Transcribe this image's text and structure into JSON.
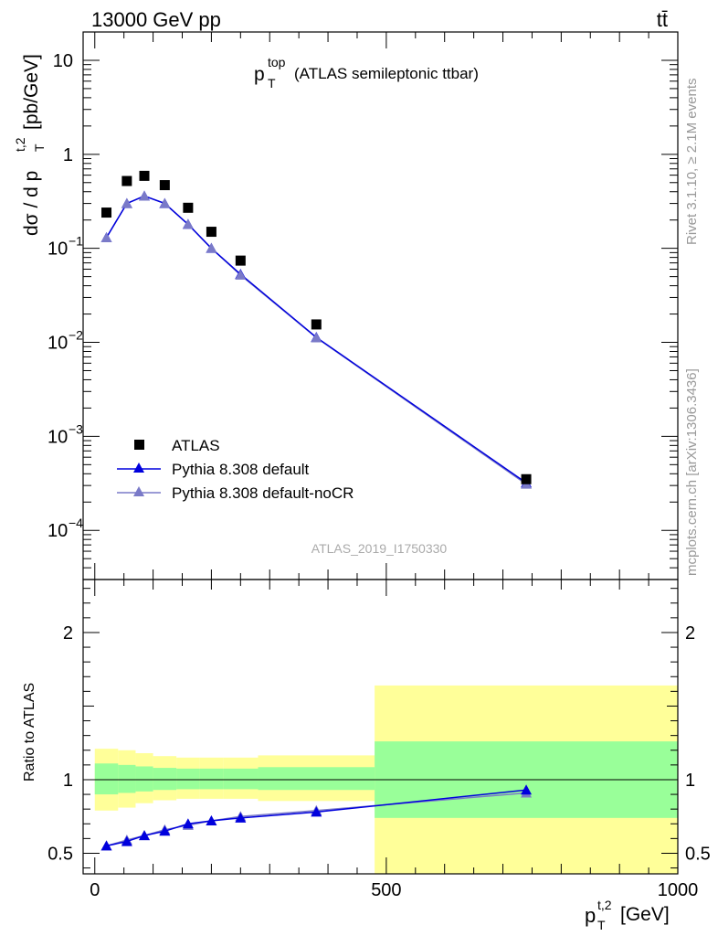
{
  "header": {
    "left": "13000 GeV pp",
    "right": "tt̄"
  },
  "side_labels": {
    "rivet": "Rivet 3.1.10, ≥ 2.1M events",
    "mcplots": "mcplots.cern.ch [arXiv:1306.3436]"
  },
  "chart_data": [
    {
      "panel": "main",
      "type": "scatter",
      "title_main": "p",
      "title_sup": "top",
      "title_sub": "T",
      "title_rest": "(ATLAS semileptonic ttbar)",
      "ylabel_prefix": "dσ / d p",
      "ylabel_sup": "t,2",
      "ylabel_sub": "T",
      "ylabel_suffix": "[pb/GeV]",
      "watermark": "ATLAS_2019_I1750330",
      "ylog": true,
      "ylim": [
        3e-05,
        20
      ],
      "xlim": [
        -20,
        1000
      ],
      "yticks": [
        {
          "value": 10,
          "base": "10",
          "exp": ""
        },
        {
          "value": 1,
          "base": "1",
          "exp": ""
        },
        {
          "value": 0.1,
          "base": "10",
          "exp": "−1"
        },
        {
          "value": 0.01,
          "base": "10",
          "exp": "−2"
        },
        {
          "value": 0.001,
          "base": "10",
          "exp": "−3"
        },
        {
          "value": 0.0001,
          "base": "10",
          "exp": "−4"
        }
      ],
      "x": [
        20,
        55,
        85,
        120,
        160,
        200,
        250,
        380,
        740
      ],
      "series": [
        {
          "name": "ATLAS",
          "color": "#000000",
          "marker": "square",
          "values": [
            0.24,
            0.52,
            0.59,
            0.47,
            0.27,
            0.15,
            0.074,
            0.0155,
            0.00035
          ]
        },
        {
          "name": "Pythia 8.308 default",
          "color": "#0000dd",
          "marker": "triangle",
          "values": [
            0.13,
            0.3,
            0.36,
            0.3,
            0.18,
            0.1,
            0.053,
            0.0113,
            0.00032
          ]
        },
        {
          "name": "Pythia 8.308 default-noCR",
          "color": "#7a7ac8",
          "marker": "triangle",
          "values": [
            0.13,
            0.3,
            0.36,
            0.3,
            0.18,
            0.1,
            0.052,
            0.0112,
            0.00031
          ]
        }
      ]
    },
    {
      "panel": "ratio",
      "type": "line",
      "ylabel": "Ratio to ATLAS",
      "xlabel_main": "p",
      "xlabel_sup": "t,2",
      "xlabel_sub": "T",
      "xlabel_suffix": "[GeV]",
      "xlim": [
        -20,
        1000
      ],
      "ylim": [
        0.36,
        2.36
      ],
      "xticks": [
        "0",
        "500",
        "1000"
      ],
      "yticks": [
        "0.5",
        "1",
        "2"
      ],
      "bins": [
        {
          "lo": 0,
          "hi": 40,
          "g_lo": 0.9,
          "g_hi": 1.11,
          "y_lo": 0.79,
          "y_hi": 1.21
        },
        {
          "lo": 40,
          "hi": 70,
          "g_lo": 0.91,
          "g_hi": 1.1,
          "y_lo": 0.81,
          "y_hi": 1.2
        },
        {
          "lo": 70,
          "hi": 100,
          "g_lo": 0.92,
          "g_hi": 1.09,
          "y_lo": 0.84,
          "y_hi": 1.18
        },
        {
          "lo": 100,
          "hi": 140,
          "g_lo": 0.93,
          "g_hi": 1.08,
          "y_lo": 0.86,
          "y_hi": 1.16
        },
        {
          "lo": 140,
          "hi": 180,
          "g_lo": 0.935,
          "g_hi": 1.075,
          "y_lo": 0.87,
          "y_hi": 1.15
        },
        {
          "lo": 180,
          "hi": 220,
          "g_lo": 0.935,
          "g_hi": 1.075,
          "y_lo": 0.87,
          "y_hi": 1.15
        },
        {
          "lo": 220,
          "hi": 280,
          "g_lo": 0.935,
          "g_hi": 1.075,
          "y_lo": 0.87,
          "y_hi": 1.15
        },
        {
          "lo": 280,
          "hi": 480,
          "g_lo": 0.93,
          "g_hi": 1.085,
          "y_lo": 0.855,
          "y_hi": 1.165
        },
        {
          "lo": 480,
          "hi": 1000,
          "g_lo": 0.74,
          "g_hi": 1.26,
          "y_lo": 0.36,
          "y_hi": 1.64
        }
      ],
      "x": [
        20,
        55,
        85,
        120,
        160,
        200,
        250,
        380,
        740
      ],
      "series": [
        {
          "name": "Pythia 8.308 default",
          "color": "#0000dd",
          "values": [
            0.55,
            0.58,
            0.62,
            0.65,
            0.7,
            0.72,
            0.74,
            0.78,
            0.93
          ],
          "err": [
            0.01,
            0.01,
            0.01,
            0.01,
            0.01,
            0.01,
            0.01,
            0.01,
            0.025
          ]
        },
        {
          "name": "Pythia 8.308 default-noCR",
          "color": "#7a7ac8",
          "values": [
            0.55,
            0.59,
            0.62,
            0.66,
            0.69,
            0.72,
            0.75,
            0.79,
            0.91
          ],
          "err": [
            0.01,
            0.01,
            0.01,
            0.01,
            0.01,
            0.01,
            0.01,
            0.01,
            0.025
          ]
        }
      ]
    }
  ]
}
